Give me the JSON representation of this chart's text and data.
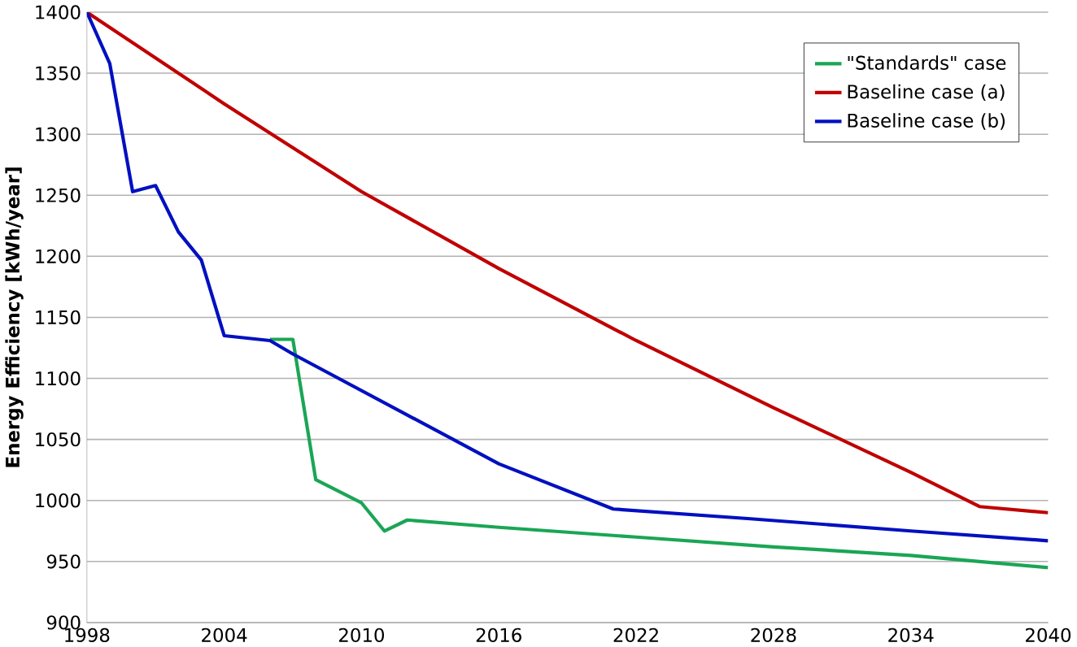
{
  "chart_data": {
    "type": "line",
    "ylabel": "Energy Efficiency [kWh/year]",
    "xlim": [
      1998,
      2040
    ],
    "xticks": [
      1998,
      2004,
      2010,
      2016,
      2022,
      2028,
      2034,
      2040
    ],
    "ylim": [
      900,
      1400
    ],
    "yticks": [
      900,
      950,
      1000,
      1050,
      1100,
      1150,
      1200,
      1250,
      1300,
      1350,
      1400
    ],
    "grid": "y",
    "legend": "top right",
    "marker": "none",
    "line_style": "solid",
    "series": [
      {
        "name": "\"Standards\" case",
        "color": "#1aa655",
        "x": [
          2006,
          2007,
          2008,
          2010,
          2011,
          2012,
          2016,
          2022,
          2028,
          2034,
          2040
        ],
        "values": [
          1132,
          1132,
          1017,
          998,
          975,
          984,
          978,
          970,
          962,
          955,
          945
        ]
      },
      {
        "name": "Baseline case (a)",
        "color": "#c00000",
        "x": [
          1998,
          2004,
          2010,
          2016,
          2022,
          2028,
          2034,
          2037,
          2040
        ],
        "values": [
          1400,
          1325,
          1253,
          1190,
          1131,
          1076,
          1023,
          995,
          990
        ]
      },
      {
        "name": "Baseline case (b)",
        "color": "#0010c0",
        "x": [
          1998,
          1999,
          2000,
          2001,
          2002,
          2003,
          2004,
          2006,
          2007,
          2016,
          2021,
          2027,
          2034,
          2040
        ],
        "values": [
          1400,
          1358,
          1253,
          1258,
          1220,
          1197,
          1135,
          1131,
          1120,
          1030,
          993,
          985,
          975,
          967
        ]
      }
    ]
  }
}
